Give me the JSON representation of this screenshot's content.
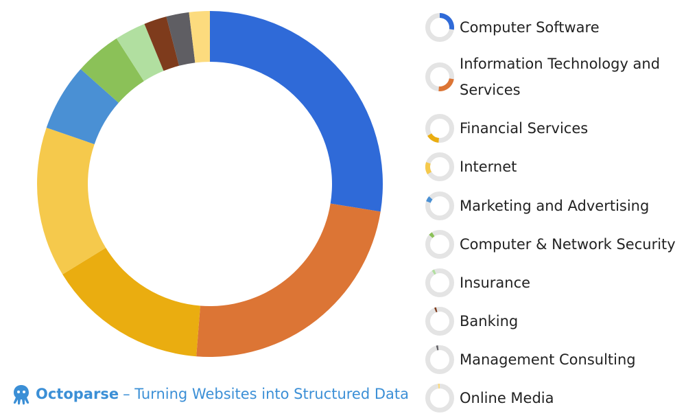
{
  "chart_data": {
    "type": "pie",
    "donut": true,
    "title": "",
    "legend_position": "right",
    "categories": [
      "Computer Software",
      "Information Technology and Services",
      "Financial Services",
      "Internet",
      "Marketing and Advertising",
      "Computer & Network Security",
      "Insurance",
      "Banking",
      "Management Consulting",
      "Online Media"
    ],
    "values": [
      28.5,
      24.5,
      15.5,
      14.5,
      6.5,
      4.5,
      3.0,
      2.2,
      2.2,
      2.0
    ],
    "colors": [
      "#2F6AD8",
      "#DC7535",
      "#EAAD10",
      "#F5C94C",
      "#4A90D4",
      "#8BC158",
      "#B1DFA0",
      "#7E3B1C",
      "#5F5E63",
      "#FCDB7E"
    ]
  },
  "branding": {
    "logo_icon": "octopus-icon",
    "name": "Octoparse",
    "tagline": "– Turning Websites into Structured Data",
    "color": "#3B8FD6"
  }
}
